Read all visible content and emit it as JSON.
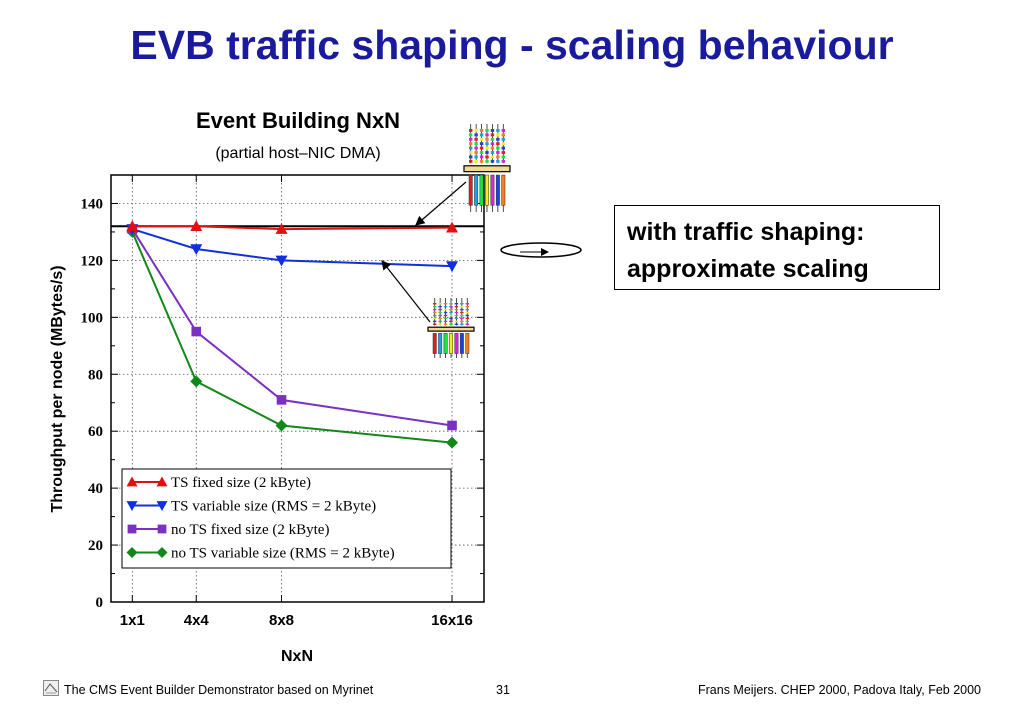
{
  "slide": {
    "title": "EVB traffic shaping - scaling behaviour",
    "callout_line1": "with traffic shaping:",
    "callout_line2": "approximate scaling",
    "footer_left": "The CMS Event Builder Demonstrator based on Myrinet",
    "footer_page": "31",
    "footer_right": "Frans Meijers.  CHEP 2000, Padova Italy, Feb 2000"
  },
  "chart_data": {
    "type": "line",
    "title": "Event Building NxN",
    "subtitle": "(partial host–NIC DMA)",
    "xlabel": "NxN",
    "ylabel": "Throughput per node (MBytes/s)",
    "x_ticks": [
      "1x1",
      "4x4",
      "8x8",
      "16x16"
    ],
    "x_values": [
      1,
      4,
      8,
      16
    ],
    "xlim": [
      0,
      17.5
    ],
    "ylim": [
      0,
      150
    ],
    "y_ticks": [
      0,
      20,
      40,
      60,
      80,
      100,
      120,
      140
    ],
    "grid": true,
    "reference_line": 132,
    "legend_position": "bottom-left",
    "series": [
      {
        "name": "TS fixed size (2 kByte)",
        "color": "#e01010",
        "marker": "triangle-up",
        "x": [
          1,
          4,
          8,
          16
        ],
        "y": [
          132,
          132,
          131,
          131.5
        ]
      },
      {
        "name": "TS variable size (RMS = 2 kByte)",
        "color": "#1030e0",
        "marker": "triangle-down",
        "x": [
          1,
          4,
          8,
          16
        ],
        "y": [
          131,
          124,
          120,
          118
        ]
      },
      {
        "name": "no TS fixed size (2 kByte)",
        "color": "#7a30c0",
        "marker": "square",
        "x": [
          1,
          4,
          8,
          16
        ],
        "y": [
          131,
          95,
          71,
          62
        ]
      },
      {
        "name": "no TS variable size (RMS = 2 kByte)",
        "color": "#12881a",
        "marker": "diamond",
        "x": [
          1,
          4,
          8,
          16
        ],
        "y": [
          130,
          77.5,
          62,
          56
        ]
      }
    ]
  }
}
